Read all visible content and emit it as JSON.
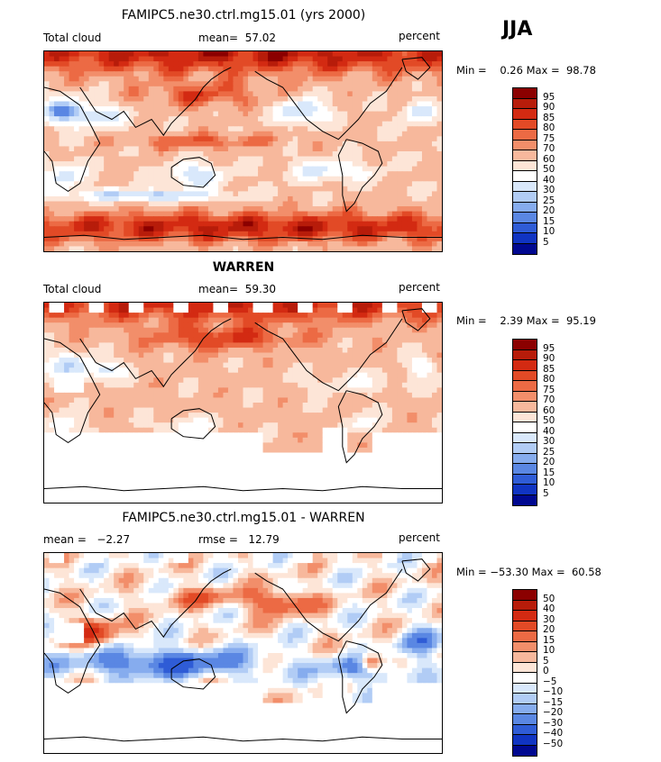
{
  "season": "JJA",
  "panels": [
    {
      "title": "FAMIPC5.ne30.ctrl.mg15.01 (yrs 2000)",
      "title_bold": false,
      "left_label": "Total cloud",
      "mid_label": "mean=  57.02",
      "right_label": "percent",
      "stats": "Min =    0.26 Max =  98.78",
      "levels": [
        "95",
        "90",
        "85",
        "80",
        "75",
        "70",
        "60",
        "50",
        "40",
        "30",
        "25",
        "20",
        "15",
        "10",
        "5"
      ],
      "colors": [
        "#8b0000",
        "#b71c0a",
        "#d32a12",
        "#e24a26",
        "#ec6a44",
        "#f28e6a",
        "#f7b89c",
        "#fde5d7",
        "#ffffff",
        "#d9e8fb",
        "#b1ccf5",
        "#86acee",
        "#5a87e3",
        "#2f5cd6",
        "#1034c2",
        "#000890"
      ],
      "field": "model",
      "has_missing": false
    },
    {
      "title": "WARREN",
      "title_bold": true,
      "left_label": "Total cloud",
      "mid_label": "mean=  59.30",
      "right_label": "percent",
      "stats": "Min =    2.39 Max =  95.19",
      "levels": [
        "95",
        "90",
        "85",
        "80",
        "75",
        "70",
        "60",
        "50",
        "40",
        "30",
        "25",
        "20",
        "15",
        "10",
        "5"
      ],
      "colors": [
        "#8b0000",
        "#b71c0a",
        "#d32a12",
        "#e24a26",
        "#ec6a44",
        "#f28e6a",
        "#f7b89c",
        "#fde5d7",
        "#ffffff",
        "#d9e8fb",
        "#b1ccf5",
        "#86acee",
        "#5a87e3",
        "#2f5cd6",
        "#1034c2",
        "#000890"
      ],
      "field": "obs",
      "has_missing": true
    },
    {
      "title": "FAMIPC5.ne30.ctrl.mg15.01 - WARREN",
      "title_bold": false,
      "left_label": "mean =   −2.27",
      "mid_label": "rmse =   12.79",
      "right_label": "percent",
      "stats": "Min = −53.30 Max =  60.58",
      "levels": [
        "50",
        "40",
        "30",
        "20",
        "15",
        "10",
        "5",
        "0",
        "−5",
        "−10",
        "−15",
        "−20",
        "−30",
        "−40",
        "−50"
      ],
      "colors": [
        "#8b0000",
        "#b71c0a",
        "#d32a12",
        "#e24a26",
        "#ec6a44",
        "#f28e6a",
        "#f7b89c",
        "#fde5d7",
        "#ffffff",
        "#d9e8fb",
        "#b1ccf5",
        "#86acee",
        "#5a87e3",
        "#2f5cd6",
        "#1034c2",
        "#000890"
      ],
      "field": "diff",
      "has_missing": true
    }
  ]
}
